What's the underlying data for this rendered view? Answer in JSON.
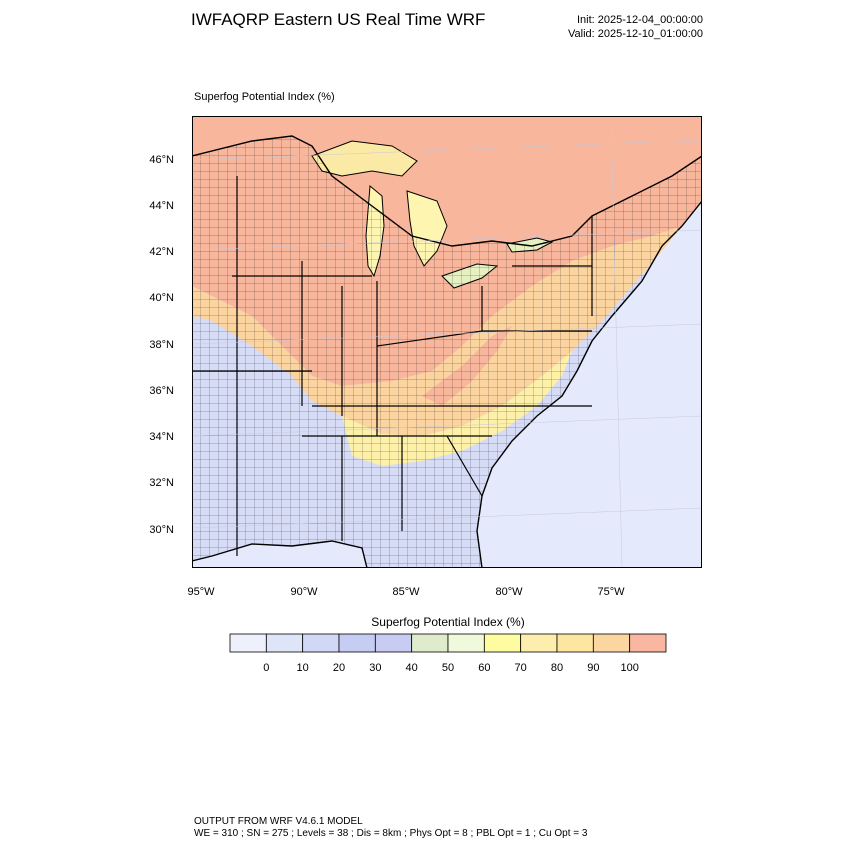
{
  "header": {
    "title": "IWFAQRP Eastern US Real Time WRF",
    "init": "Init: 2025-12-04_00:00:00",
    "valid": "Valid: 2025-12-10_01:00:00"
  },
  "map": {
    "field_label": "Superfog Potential Index   (%)",
    "lat_labels": [
      "46°N",
      "44°N",
      "42°N",
      "40°N",
      "38°N",
      "36°N",
      "34°N",
      "32°N",
      "30°N"
    ],
    "lon_labels": [
      "95°W",
      "90°W",
      "85°W",
      "80°W",
      "75°W"
    ],
    "colors": {
      "land_high": "#f8b69c",
      "land_mid": "#fbd4a0",
      "land_yellow": "#fdf0a8",
      "land_low": "#d6dcf6",
      "ocean": "#e4e9fb",
      "canada": "#f8b69c",
      "boundary": "#000000"
    }
  },
  "colorbar": {
    "title": "Superfog Potential Index  (%)",
    "colors": [
      "#eef1fb",
      "#dfe5f9",
      "#d0d8f6",
      "#c5cdf3",
      "#c9ccf2",
      "#dfeccb",
      "#f1f9dd",
      "#fdfca0",
      "#fdeeae",
      "#fde6a0",
      "#fcd6a0",
      "#f9b6a0"
    ],
    "ticks": [
      "0",
      "10",
      "20",
      "30",
      "40",
      "50",
      "60",
      "70",
      "80",
      "90",
      "100"
    ]
  },
  "footer": {
    "line1": "OUTPUT FROM WRF V4.6.1 MODEL",
    "line2": "WE = 310 ; SN = 275 ; Levels = 38 ; Dis = 8km ; Phys Opt = 8 ; PBL Opt = 1 ; Cu Opt = 3"
  }
}
